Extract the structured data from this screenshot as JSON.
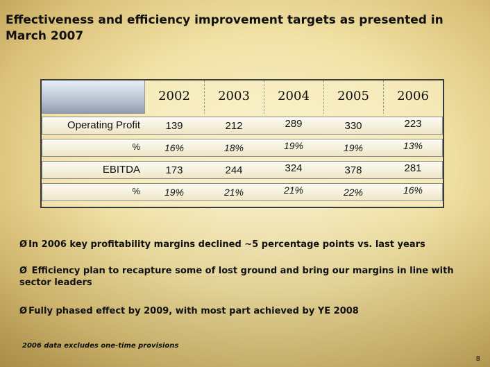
{
  "slide": {
    "title": "Effectiveness and efficiency improvement targets as presented in March 2007",
    "page_number": "8",
    "footnote": "2006 data excludes one-time provisions"
  },
  "table": {
    "years": [
      "2002",
      "2003",
      "2004",
      "2005",
      "2006"
    ],
    "rows": [
      {
        "label": "Operating Profit",
        "values": [
          "139",
          "212",
          "289",
          "330",
          "223"
        ]
      },
      {
        "label": "%",
        "values": [
          "16%",
          "18%",
          "19%",
          "19%",
          "13%"
        ]
      },
      {
        "label": "EBITDA",
        "values": [
          "173",
          "244",
          "324",
          "378",
          "281"
        ]
      },
      {
        "label": "%",
        "values": [
          "19%",
          "21%",
          "21%",
          "22%",
          "16%"
        ]
      }
    ]
  },
  "bullets": [
    {
      "arrow": "Ø",
      "text": "In 2006 key profitability margins declined ~5 percentage points vs. last years"
    },
    {
      "arrow": "Ø",
      "text": " Efficiency plan to recapture some of lost ground and bring our margins in line with sector leaders"
    },
    {
      "arrow": "Ø",
      "text": "Fully phased effect by 2009, with most part achieved by YE 2008"
    }
  ]
}
